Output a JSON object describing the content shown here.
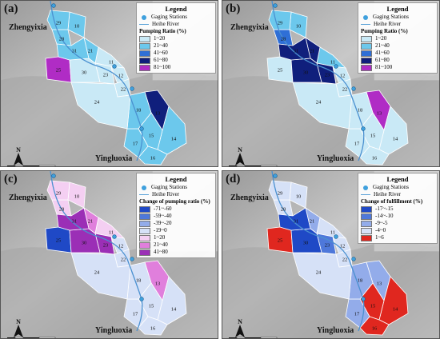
{
  "places": {
    "north": "Zhengyixia",
    "south": "Yingluoxia"
  },
  "north_arrow": "N",
  "scale": {
    "ticks": [
      "0",
      "10",
      "20"
    ],
    "distance": "40 km"
  },
  "legend_common": {
    "title": "Legend",
    "gauge": "Gaging Stations",
    "river": "Heihe River"
  },
  "panels": [
    {
      "id": "a",
      "label": "(a)",
      "subtitle": "Pumping Ratio (%)",
      "classes": [
        {
          "label": "1~20",
          "color": "#c9e9f6"
        },
        {
          "label": "21~40",
          "color": "#6cc8ec"
        },
        {
          "label": "41~60",
          "color": "#2f6fd6"
        },
        {
          "label": "61~80",
          "color": "#101f7c"
        },
        {
          "label": "81~100",
          "color": "#b02cc5"
        }
      ],
      "zones": {
        "29": 1,
        "10": 1,
        "28": 1,
        "31": 1,
        "21": 1,
        "25": 4,
        "30": 0,
        "23": 0,
        "11": 0,
        "12": 0,
        "22": 0,
        "24": 0,
        "18": 1,
        "13": 3,
        "14": 1,
        "17": 1,
        "15": 1,
        "16": 1
      },
      "zone_labels": [
        "29",
        "10",
        "28",
        "31",
        "21",
        "25",
        "30",
        "23",
        "11",
        "12",
        "22",
        "24",
        "18",
        "13",
        "14",
        "17",
        "15",
        "16"
      ]
    },
    {
      "id": "b",
      "label": "(b)",
      "subtitle": "Pumping Ratio (%)",
      "classes": [
        {
          "label": "1~20",
          "color": "#c9e9f6"
        },
        {
          "label": "21~40",
          "color": "#6cc8ec"
        },
        {
          "label": "41~60",
          "color": "#2f6fd6"
        },
        {
          "label": "61~80",
          "color": "#101f7c"
        },
        {
          "label": "81~100",
          "color": "#b02cc5"
        }
      ],
      "zones": {
        "29": 1,
        "10": 1,
        "28": 2,
        "31": 3,
        "21": 3,
        "25": 0,
        "30": 3,
        "23": 3,
        "11": 1,
        "12": 0,
        "22": 0,
        "24": 0,
        "18": 0,
        "13": 4,
        "14": 0,
        "17": 0,
        "15": 0,
        "16": 0
      },
      "zone_labels": [
        "29",
        "10",
        "28",
        "31",
        "21",
        "25",
        "30",
        "23",
        "11",
        "12",
        "22",
        "24",
        "18",
        "13",
        "14",
        "17",
        "15",
        "16"
      ]
    },
    {
      "id": "c",
      "label": "(c)",
      "subtitle": "Change of pumping ratio (%)",
      "classes": [
        {
          "label": "-71~-60",
          "color": "#1f49c6"
        },
        {
          "label": "-59~-40",
          "color": "#4e78da"
        },
        {
          "label": "-39~-20",
          "color": "#93acea"
        },
        {
          "label": "-19~0",
          "color": "#d6e1f7"
        },
        {
          "label": "1~20",
          "color": "#f4cff2"
        },
        {
          "label": "21~40",
          "color": "#e07fdc"
        },
        {
          "label": "41~80",
          "color": "#9b2fb6"
        }
      ],
      "zones": {
        "29": 4,
        "10": 4,
        "28": 4,
        "31": 6,
        "21": 5,
        "25": 0,
        "30": 6,
        "23": 6,
        "11": 4,
        "12": 3,
        "22": 3,
        "24": 3,
        "18": 3,
        "13": 5,
        "14": 3,
        "17": 3,
        "15": 3,
        "16": 3
      },
      "zone_labels": [
        "29",
        "10",
        "28",
        "31",
        "21",
        "25",
        "30",
        "23",
        "11",
        "12",
        "22",
        "24",
        "18",
        "13",
        "14",
        "17",
        "15",
        "16"
      ]
    },
    {
      "id": "d",
      "label": "(d)",
      "subtitle": "Change of fulfillment (%)",
      "classes": [
        {
          "label": "-17~-15",
          "color": "#1f49c6"
        },
        {
          "label": "-14~-10",
          "color": "#4e78da"
        },
        {
          "label": "-9~-5",
          "color": "#93acea"
        },
        {
          "label": "-4~0",
          "color": "#d6e1f7"
        },
        {
          "label": "1~6",
          "color": "#e0271f"
        }
      ],
      "zones": {
        "29": 3,
        "10": 3,
        "28": 3,
        "31": 0,
        "21": 2,
        "25": 4,
        "30": 0,
        "23": 1,
        "11": 3,
        "12": 3,
        "22": 3,
        "24": 3,
        "18": 2,
        "13": 2,
        "14": 4,
        "17": 2,
        "15": 4,
        "16": 4
      },
      "zone_labels": [
        "29",
        "10",
        "28",
        "31",
        "21",
        "25",
        "30",
        "23",
        "11",
        "12",
        "22",
        "24",
        "18",
        "13",
        "14",
        "17",
        "15",
        "16"
      ]
    }
  ]
}
